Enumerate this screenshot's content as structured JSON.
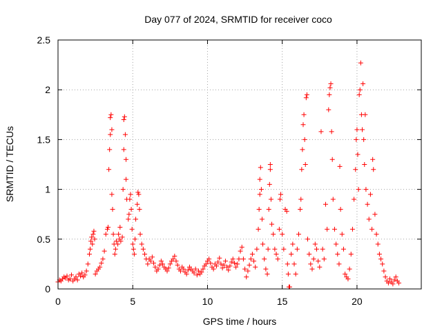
{
  "chart_data": {
    "type": "scatter",
    "title": "Day 077 of 2024, SRMTID for receiver coco",
    "xlabel": "GPS time / hours",
    "ylabel": "SRMTID / TECUs",
    "xlim": [
      0,
      24.3
    ],
    "ylim": [
      0,
      2.5
    ],
    "xticks": [
      0,
      5,
      10,
      15,
      20
    ],
    "xtick_labels": [
      "0",
      "5",
      "10",
      "15",
      "20"
    ],
    "yticks": [
      0,
      0.5,
      1,
      1.5,
      2,
      2.5
    ],
    "ytick_labels": [
      "0",
      "0.5",
      "1",
      "1.5",
      "2",
      "2.5"
    ],
    "grid": true,
    "marker": "plus",
    "color": "#ff0000",
    "series": [
      {
        "name": "SRMTID",
        "points": [
          [
            0.0,
            0.07
          ],
          [
            0.1,
            0.09
          ],
          [
            0.2,
            0.08
          ],
          [
            0.3,
            0.1
          ],
          [
            0.4,
            0.12
          ],
          [
            0.5,
            0.11
          ],
          [
            0.6,
            0.13
          ],
          [
            0.7,
            0.09
          ],
          [
            0.8,
            0.1
          ],
          [
            0.9,
            0.14
          ],
          [
            1.0,
            0.08
          ],
          [
            1.1,
            0.1
          ],
          [
            1.2,
            0.12
          ],
          [
            1.3,
            0.09
          ],
          [
            1.4,
            0.15
          ],
          [
            1.5,
            0.13
          ],
          [
            1.6,
            0.16
          ],
          [
            1.7,
            0.12
          ],
          [
            1.8,
            0.14
          ],
          [
            1.9,
            0.18
          ],
          [
            2.0,
            0.25
          ],
          [
            2.1,
            0.35
          ],
          [
            2.15,
            0.4
          ],
          [
            2.2,
            0.48
          ],
          [
            2.25,
            0.52
          ],
          [
            2.3,
            0.45
          ],
          [
            2.35,
            0.55
          ],
          [
            2.4,
            0.58
          ],
          [
            2.45,
            0.5
          ],
          [
            2.5,
            0.15
          ],
          [
            2.6,
            0.18
          ],
          [
            2.7,
            0.2
          ],
          [
            2.8,
            0.22
          ],
          [
            2.9,
            0.26
          ],
          [
            3.0,
            0.3
          ],
          [
            3.1,
            0.38
          ],
          [
            3.2,
            0.55
          ],
          [
            3.3,
            0.6
          ],
          [
            3.35,
            0.62
          ],
          [
            3.4,
            1.2
          ],
          [
            3.45,
            1.4
          ],
          [
            3.5,
            1.55
          ],
          [
            3.5,
            1.72
          ],
          [
            3.55,
            1.75
          ],
          [
            3.6,
            1.6
          ],
          [
            3.6,
            0.95
          ],
          [
            3.65,
            0.8
          ],
          [
            3.7,
            0.55
          ],
          [
            3.75,
            0.45
          ],
          [
            3.8,
            0.35
          ],
          [
            3.85,
            0.4
          ],
          [
            3.9,
            0.48
          ],
          [
            4.0,
            0.45
          ],
          [
            4.05,
            0.55
          ],
          [
            4.1,
            0.5
          ],
          [
            4.15,
            0.62
          ],
          [
            4.2,
            0.48
          ],
          [
            4.3,
            0.52
          ],
          [
            4.35,
            1.0
          ],
          [
            4.4,
            1.4
          ],
          [
            4.4,
            1.7
          ],
          [
            4.45,
            1.73
          ],
          [
            4.5,
            1.55
          ],
          [
            4.55,
            1.3
          ],
          [
            4.55,
            1.1
          ],
          [
            4.6,
            0.9
          ],
          [
            4.7,
            0.7
          ],
          [
            4.75,
            0.75
          ],
          [
            4.8,
            0.9
          ],
          [
            4.85,
            0.95
          ],
          [
            4.9,
            0.8
          ],
          [
            4.95,
            0.6
          ],
          [
            5.0,
            0.45
          ],
          [
            5.05,
            0.4
          ],
          [
            5.1,
            0.35
          ],
          [
            5.15,
            0.5
          ],
          [
            5.2,
            0.7
          ],
          [
            5.3,
            0.85
          ],
          [
            5.35,
            0.97
          ],
          [
            5.4,
            0.95
          ],
          [
            5.45,
            0.8
          ],
          [
            5.5,
            0.55
          ],
          [
            5.6,
            0.45
          ],
          [
            5.7,
            0.4
          ],
          [
            5.8,
            0.35
          ],
          [
            5.9,
            0.3
          ],
          [
            6.0,
            0.25
          ],
          [
            6.1,
            0.3
          ],
          [
            6.2,
            0.28
          ],
          [
            6.3,
            0.32
          ],
          [
            6.4,
            0.26
          ],
          [
            6.5,
            0.22
          ],
          [
            6.6,
            0.18
          ],
          [
            6.7,
            0.2
          ],
          [
            6.8,
            0.24
          ],
          [
            6.9,
            0.28
          ],
          [
            7.0,
            0.25
          ],
          [
            7.1,
            0.22
          ],
          [
            7.2,
            0.2
          ],
          [
            7.3,
            0.18
          ],
          [
            7.4,
            0.21
          ],
          [
            7.5,
            0.25
          ],
          [
            7.6,
            0.28
          ],
          [
            7.7,
            0.3
          ],
          [
            7.8,
            0.33
          ],
          [
            7.9,
            0.28
          ],
          [
            8.0,
            0.24
          ],
          [
            8.1,
            0.2
          ],
          [
            8.2,
            0.18
          ],
          [
            8.3,
            0.22
          ],
          [
            8.4,
            0.2
          ],
          [
            8.5,
            0.17
          ],
          [
            8.6,
            0.15
          ],
          [
            8.7,
            0.19
          ],
          [
            8.8,
            0.22
          ],
          [
            8.9,
            0.2
          ],
          [
            9.0,
            0.18
          ],
          [
            9.1,
            0.16
          ],
          [
            9.2,
            0.2
          ],
          [
            9.3,
            0.14
          ],
          [
            9.4,
            0.18
          ],
          [
            9.5,
            0.15
          ],
          [
            9.6,
            0.17
          ],
          [
            9.7,
            0.2
          ],
          [
            9.8,
            0.23
          ],
          [
            9.9,
            0.25
          ],
          [
            10.0,
            0.28
          ],
          [
            10.1,
            0.3
          ],
          [
            10.2,
            0.26
          ],
          [
            10.3,
            0.22
          ],
          [
            10.4,
            0.2
          ],
          [
            10.5,
            0.25
          ],
          [
            10.6,
            0.23
          ],
          [
            10.7,
            0.27
          ],
          [
            10.8,
            0.31
          ],
          [
            10.9,
            0.25
          ],
          [
            11.0,
            0.21
          ],
          [
            11.1,
            0.24
          ],
          [
            11.2,
            0.28
          ],
          [
            11.3,
            0.22
          ],
          [
            11.4,
            0.19
          ],
          [
            11.5,
            0.23
          ],
          [
            11.6,
            0.27
          ],
          [
            11.7,
            0.3
          ],
          [
            11.8,
            0.26
          ],
          [
            11.9,
            0.22
          ],
          [
            12.0,
            0.25
          ],
          [
            12.1,
            0.3
          ],
          [
            12.2,
            0.38
          ],
          [
            12.3,
            0.42
          ],
          [
            12.4,
            0.3
          ],
          [
            12.5,
            0.2
          ],
          [
            12.6,
            0.12
          ],
          [
            12.7,
            0.18
          ],
          [
            12.8,
            0.24
          ],
          [
            12.9,
            0.3
          ],
          [
            13.0,
            0.35
          ],
          [
            13.1,
            0.28
          ],
          [
            13.2,
            0.22
          ],
          [
            13.3,
            0.4
          ],
          [
            13.4,
            0.6
          ],
          [
            13.45,
            0.8
          ],
          [
            13.5,
            0.95
          ],
          [
            13.5,
            1.1
          ],
          [
            13.55,
            1.22
          ],
          [
            13.6,
            1.0
          ],
          [
            13.65,
            0.7
          ],
          [
            13.7,
            0.45
          ],
          [
            13.8,
            0.3
          ],
          [
            13.9,
            0.2
          ],
          [
            14.0,
            0.15
          ],
          [
            14.05,
            0.4
          ],
          [
            14.1,
            0.8
          ],
          [
            14.15,
            1.05
          ],
          [
            14.2,
            1.2
          ],
          [
            14.2,
            1.25
          ],
          [
            14.25,
            0.9
          ],
          [
            14.3,
            0.65
          ],
          [
            14.4,
            0.55
          ],
          [
            14.5,
            0.4
          ],
          [
            14.6,
            0.35
          ],
          [
            14.7,
            0.3
          ],
          [
            14.8,
            0.6
          ],
          [
            14.85,
            0.9
          ],
          [
            14.9,
            0.95
          ],
          [
            15.0,
            0.55
          ],
          [
            15.1,
            0.4
          ],
          [
            15.2,
            0.8
          ],
          [
            15.3,
            0.78
          ],
          [
            15.35,
            0.25
          ],
          [
            15.4,
            0.15
          ],
          [
            15.45,
            0.02
          ],
          [
            15.5,
            0.02
          ],
          [
            15.6,
            0.35
          ],
          [
            15.7,
            0.45
          ],
          [
            15.8,
            0.25
          ],
          [
            15.9,
            0.15
          ],
          [
            16.0,
            0.4
          ],
          [
            16.1,
            0.55
          ],
          [
            16.2,
            0.8
          ],
          [
            16.25,
            0.9
          ],
          [
            16.3,
            1.2
          ],
          [
            16.35,
            1.4
          ],
          [
            16.4,
            1.65
          ],
          [
            16.45,
            1.75
          ],
          [
            16.5,
            1.5
          ],
          [
            16.55,
            1.25
          ],
          [
            16.6,
            1.92
          ],
          [
            16.65,
            1.95
          ],
          [
            16.7,
            0.5
          ],
          [
            16.8,
            0.35
          ],
          [
            16.9,
            0.25
          ],
          [
            17.0,
            0.2
          ],
          [
            17.1,
            0.3
          ],
          [
            17.2,
            0.45
          ],
          [
            17.3,
            0.4
          ],
          [
            17.4,
            0.28
          ],
          [
            17.5,
            0.22
          ],
          [
            17.6,
            1.58
          ],
          [
            17.7,
            0.4
          ],
          [
            17.8,
            0.3
          ],
          [
            17.9,
            0.85
          ],
          [
            18.0,
            0.6
          ],
          [
            18.1,
            1.8
          ],
          [
            18.15,
            1.95
          ],
          [
            18.2,
            2.02
          ],
          [
            18.25,
            2.06
          ],
          [
            18.3,
            1.58
          ],
          [
            18.35,
            1.3
          ],
          [
            18.4,
            0.9
          ],
          [
            18.5,
            0.6
          ],
          [
            18.6,
            0.45
          ],
          [
            18.7,
            0.35
          ],
          [
            18.8,
            0.25
          ],
          [
            18.85,
            1.23
          ],
          [
            18.9,
            0.8
          ],
          [
            19.0,
            0.55
          ],
          [
            19.1,
            0.4
          ],
          [
            19.2,
            0.15
          ],
          [
            19.3,
            0.12
          ],
          [
            19.4,
            0.1
          ],
          [
            19.5,
            0.2
          ],
          [
            19.6,
            0.35
          ],
          [
            19.7,
            0.6
          ],
          [
            19.8,
            0.9
          ],
          [
            19.9,
            1.2
          ],
          [
            19.95,
            1.5
          ],
          [
            20.0,
            1.6
          ],
          [
            20.05,
            1.35
          ],
          [
            20.1,
            1.0
          ],
          [
            20.15,
            1.95
          ],
          [
            20.2,
            2.0
          ],
          [
            20.25,
            2.27
          ],
          [
            20.3,
            1.75
          ],
          [
            20.35,
            1.6
          ],
          [
            20.4,
            2.06
          ],
          [
            20.45,
            1.5
          ],
          [
            20.5,
            1.25
          ],
          [
            20.55,
            1.75
          ],
          [
            20.6,
            1.0
          ],
          [
            20.7,
            0.85
          ],
          [
            20.8,
            0.7
          ],
          [
            20.9,
            0.95
          ],
          [
            21.0,
            0.6
          ],
          [
            21.05,
            1.3
          ],
          [
            21.1,
            1.2
          ],
          [
            21.2,
            0.75
          ],
          [
            21.3,
            0.55
          ],
          [
            21.4,
            0.45
          ],
          [
            21.5,
            0.35
          ],
          [
            21.6,
            0.3
          ],
          [
            21.7,
            0.25
          ],
          [
            21.8,
            0.18
          ],
          [
            21.9,
            0.12
          ],
          [
            22.0,
            0.08
          ],
          [
            22.1,
            0.06
          ],
          [
            22.2,
            0.1
          ],
          [
            22.3,
            0.07
          ],
          [
            22.4,
            0.05
          ],
          [
            22.5,
            0.09
          ],
          [
            22.6,
            0.12
          ],
          [
            22.7,
            0.08
          ],
          [
            22.8,
            0.06
          ]
        ]
      }
    ]
  }
}
